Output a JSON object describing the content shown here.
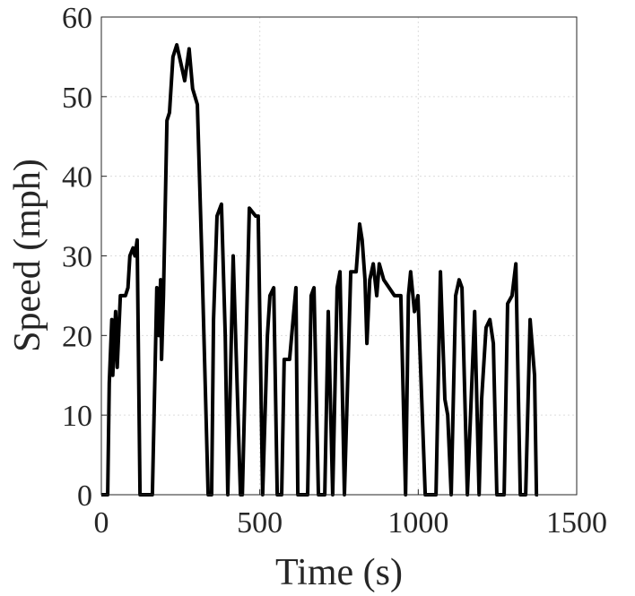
{
  "chart_data": {
    "type": "line",
    "xlabel": "Time (s)",
    "ylabel": "Speed (mph)",
    "x": [
      0,
      20,
      25,
      33,
      36,
      45,
      50,
      60,
      76,
      84,
      90,
      100,
      106,
      113,
      122,
      161,
      175,
      181,
      187,
      190,
      196,
      207,
      215,
      226,
      238,
      252,
      263,
      277,
      288,
      303,
      317,
      337,
      348,
      354,
      365,
      379,
      391,
      399,
      416,
      439,
      445,
      467,
      487,
      495,
      509,
      524,
      532,
      544,
      555,
      569,
      577,
      594,
      614,
      620,
      651,
      662,
      671,
      685,
      705,
      716,
      730,
      744,
      753,
      767,
      787,
      804,
      815,
      823,
      832,
      838,
      847,
      858,
      869,
      877,
      891,
      908,
      925,
      945,
      960,
      969,
      976,
      988,
      999,
      1022,
      1056,
      1070,
      1084,
      1093,
      1104,
      1118,
      1129,
      1138,
      1155,
      1178,
      1192,
      1200,
      1214,
      1226,
      1237,
      1248,
      1271,
      1282,
      1296,
      1308,
      1322,
      1339,
      1353,
      1367,
      1373,
      1378
    ],
    "values": [
      0,
      0,
      14,
      22,
      15,
      23,
      16,
      25,
      25,
      26,
      30,
      31,
      30,
      32,
      0,
      0,
      26,
      20,
      27,
      17,
      25,
      47,
      48,
      55,
      56.5,
      54,
      52,
      56,
      51,
      49,
      30,
      0,
      0,
      22,
      35,
      36.5,
      20,
      0,
      30,
      0,
      0,
      36,
      35,
      35,
      0,
      20,
      25,
      26,
      0,
      0,
      17,
      17,
      26,
      0,
      0,
      25,
      26,
      0,
      0,
      23,
      0,
      26,
      28,
      0,
      28,
      28,
      34,
      32,
      27,
      19,
      27,
      29,
      25,
      29,
      27,
      26,
      25,
      25,
      0,
      25,
      28,
      23,
      25,
      0,
      0,
      28,
      12,
      10,
      0,
      25,
      27,
      26,
      0,
      23,
      0,
      12,
      21,
      22,
      19,
      0,
      0,
      24,
      25,
      29,
      0,
      0,
      22,
      15,
      0,
      0
    ],
    "color": "#000000",
    "xlim": [
      0,
      1500
    ],
    "xticks": [
      0,
      500,
      1000,
      1500
    ],
    "ylim": [
      0,
      60
    ],
    "yticks": [
      0,
      10,
      20,
      30,
      40,
      50,
      60
    ],
    "grid": true
  }
}
